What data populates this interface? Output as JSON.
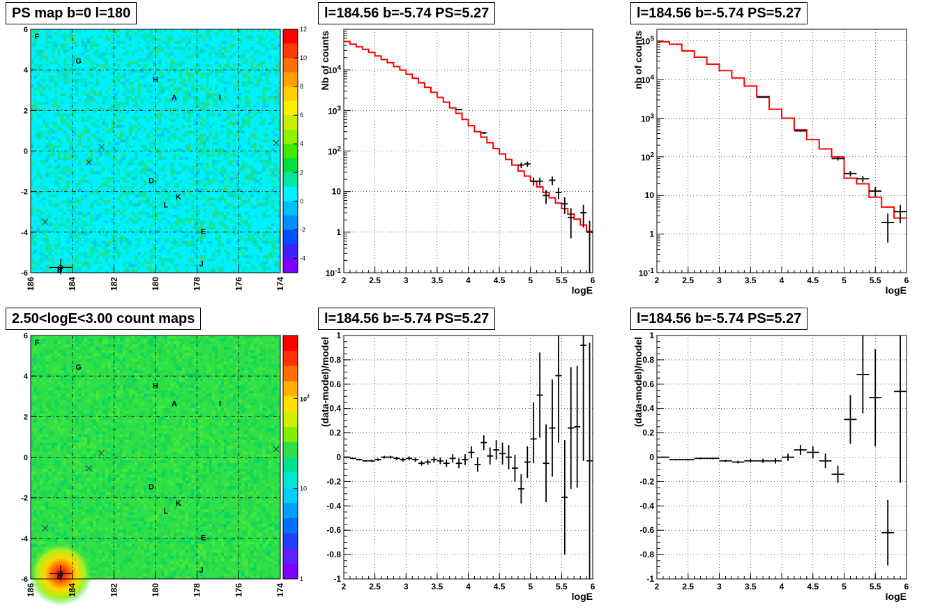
{
  "chart_data": [
    {
      "type": "heatmap",
      "title": "PS map b=0 l=180",
      "xlim": [
        186,
        174
      ],
      "ylim": [
        -6,
        6
      ],
      "x_ticks": [
        "186",
        "184",
        "182",
        "180",
        "178",
        "176",
        "174"
      ],
      "y_ticks": [
        "6",
        "4",
        "2",
        "0",
        "-2",
        "-4",
        "-6"
      ],
      "z_scale": "linear",
      "z_ticks": [
        "12",
        "10",
        "8",
        "6",
        "4",
        "2",
        "0",
        "-2",
        "-4"
      ],
      "zlim": [
        -5,
        12
      ],
      "grid": true,
      "colors": {
        "background": "#00f0ff",
        "field": "#20e8ee",
        "marker": "#000000"
      },
      "labels": [
        {
          "text": "F",
          "l": 185.7,
          "b": 5.65
        },
        {
          "text": "G",
          "l": 183.7,
          "b": 4.45
        },
        {
          "text": "H",
          "l": 180.0,
          "b": 3.55
        },
        {
          "text": "A",
          "l": 179.1,
          "b": 2.65
        },
        {
          "text": "I",
          "l": 176.9,
          "b": 2.65
        },
        {
          "text": "D",
          "l": 180.2,
          "b": -1.45
        },
        {
          "text": "K",
          "l": 178.9,
          "b": -2.25
        },
        {
          "text": "L",
          "l": 179.5,
          "b": -2.65
        },
        {
          "text": "E",
          "l": 177.7,
          "b": -3.95
        },
        {
          "text": "J",
          "l": 177.8,
          "b": -5.55
        },
        {
          "text": "B",
          "l": 184.6,
          "b": -5.85
        }
      ],
      "crosses": [
        {
          "l": 182.6,
          "b": 0.2
        },
        {
          "l": 183.2,
          "b": -0.55
        },
        {
          "l": 174.2,
          "b": 0.4
        },
        {
          "l": 185.3,
          "b": -3.5
        }
      ],
      "errorbar_marker": {
        "l": 184.56,
        "b": -5.74
      }
    },
    {
      "type": "line",
      "title": "l=184.56 b=-5.74 PS=5.27",
      "xlabel": "logE",
      "ylabel": "Nb of counts",
      "xlim": [
        2,
        6
      ],
      "ylim": [
        0.1,
        100000
      ],
      "yscale": "log",
      "x_ticks": [
        "2",
        "2.5",
        "3",
        "3.5",
        "4",
        "4.5",
        "5",
        "5.5",
        "6"
      ],
      "y_ticks": [
        "10^-1",
        "1",
        "10",
        "10^2",
        "10^3",
        "10^4"
      ],
      "grid": true,
      "bin_width": 0.1,
      "series": [
        {
          "name": "",
          "color": "#ff0000",
          "style": "step",
          "x": [
            2.0,
            2.1,
            2.2,
            2.3,
            2.4,
            2.5,
            2.6,
            2.7,
            2.8,
            2.9,
            3.0,
            3.1,
            3.2,
            3.3,
            3.4,
            3.5,
            3.6,
            3.7,
            3.8,
            3.9,
            4.0,
            4.1,
            4.2,
            4.3,
            4.4,
            4.5,
            4.6,
            4.7,
            4.8,
            4.9,
            5.0,
            5.1,
            5.2,
            5.3,
            5.4,
            5.5,
            5.6,
            5.7,
            5.8,
            5.9
          ],
          "values": [
            50000,
            43000,
            37000,
            32000,
            27000,
            22000,
            18000,
            15000,
            12000,
            9800,
            7800,
            6200,
            4800,
            3700,
            2800,
            2100,
            1600,
            1150,
            850,
            600,
            420,
            300,
            220,
            160,
            115,
            85,
            62,
            45,
            32,
            24,
            18,
            13,
            9.5,
            7,
            5.2,
            3.8,
            2.8,
            2.1,
            1.5,
            1.05
          ]
        },
        {
          "name": "",
          "color": "#000000",
          "style": "errorbar",
          "x": [
            3.85,
            4.25,
            4.85,
            4.95,
            5.05,
            5.15,
            5.25,
            5.35,
            5.45,
            5.55,
            5.65,
            5.85,
            5.95
          ],
          "values": [
            1050,
            280,
            45,
            48,
            18,
            18,
            8,
            19,
            9.5,
            5,
            2.3,
            3,
            1
          ],
          "err_low": [
            30,
            16,
            7,
            7,
            4,
            4,
            3,
            4.5,
            3,
            2.2,
            1.6,
            1.7,
            0.9
          ],
          "err_high": [
            30,
            16,
            7,
            7,
            4,
            4,
            3,
            4.5,
            3,
            2.2,
            1.6,
            1.7,
            0.9
          ]
        }
      ]
    },
    {
      "type": "line",
      "title": "l=184.56 b=-5.74 PS=5.27",
      "xlabel": "logE",
      "ylabel": "nb of counts",
      "xlim": [
        2,
        6
      ],
      "ylim": [
        0.1,
        200000
      ],
      "yscale": "log",
      "x_ticks": [
        "2",
        "2.5",
        "3",
        "3.5",
        "4",
        "4.5",
        "5",
        "5.5",
        "6"
      ],
      "y_ticks": [
        "10^-1",
        "1",
        "10",
        "10^2",
        "10^3",
        "10^4",
        "10^5"
      ],
      "grid": true,
      "bin_width": 0.2,
      "series": [
        {
          "name": "",
          "color": "#ff0000",
          "style": "step",
          "x": [
            2.0,
            2.2,
            2.4,
            2.6,
            2.8,
            3.0,
            3.2,
            3.4,
            3.6,
            3.8,
            4.0,
            4.2,
            4.4,
            4.6,
            4.8,
            5.0,
            5.2,
            5.4,
            5.6,
            5.8
          ],
          "values": [
            95000,
            82000,
            55000,
            38000,
            25000,
            17000,
            11000,
            6800,
            3600,
            1700,
            1000,
            500,
            280,
            160,
            100,
            28,
            20,
            9,
            5,
            2.6
          ]
        },
        {
          "name": "",
          "color": "#000000",
          "style": "errorbar",
          "x": [
            3.7,
            4.3,
            4.9,
            5.1,
            5.3,
            5.5,
            5.7,
            5.9
          ],
          "values": [
            3500,
            470,
            90,
            37,
            27,
            13,
            2,
            3.8
          ],
          "err_low": [
            60,
            22,
            10,
            6,
            5,
            3.6,
            1.4,
            1.9
          ],
          "err_high": [
            60,
            22,
            10,
            6,
            5,
            3.6,
            1.4,
            1.9
          ]
        }
      ]
    },
    {
      "type": "heatmap",
      "title": "2.50<logE<3.00 count maps",
      "xlim": [
        186,
        174
      ],
      "ylim": [
        -6,
        6
      ],
      "x_ticks": [
        "186",
        "184",
        "182",
        "180",
        "178",
        "176",
        "174"
      ],
      "y_ticks": [
        "6",
        "4",
        "2",
        "0",
        "-2",
        "-4",
        "-6"
      ],
      "z_scale": "log",
      "z_ticks": [
        "10^2",
        "10",
        "1"
      ],
      "zlim": [
        1,
        500
      ],
      "grid": true,
      "colors": {
        "background": "#2ee050",
        "field": "#30e048",
        "hotspot": "#ff0000",
        "marker": "#000000"
      },
      "hotspot": {
        "l": 184.56,
        "b": -5.74
      },
      "labels": [
        {
          "text": "F",
          "l": 185.7,
          "b": 5.65
        },
        {
          "text": "G",
          "l": 183.7,
          "b": 4.45
        },
        {
          "text": "H",
          "l": 180.0,
          "b": 3.55
        },
        {
          "text": "A",
          "l": 179.1,
          "b": 2.65
        },
        {
          "text": "I",
          "l": 176.9,
          "b": 2.65
        },
        {
          "text": "D",
          "l": 180.2,
          "b": -1.45
        },
        {
          "text": "K",
          "l": 178.9,
          "b": -2.25
        },
        {
          "text": "L",
          "l": 179.5,
          "b": -2.65
        },
        {
          "text": "E",
          "l": 177.7,
          "b": -3.95
        },
        {
          "text": "J",
          "l": 177.8,
          "b": -5.55
        },
        {
          "text": "B",
          "l": 184.6,
          "b": -5.85
        }
      ],
      "crosses": [
        {
          "l": 182.6,
          "b": 0.2
        },
        {
          "l": 183.2,
          "b": -0.55
        },
        {
          "l": 174.2,
          "b": 0.4
        },
        {
          "l": 185.3,
          "b": -3.5
        }
      ],
      "errorbar_marker": {
        "l": 184.56,
        "b": -5.74
      }
    },
    {
      "type": "scatter",
      "title": "l=184.56 b=-5.74 PS=5.27",
      "xlabel": "logE",
      "ylabel": "(data-model)/model",
      "xlim": [
        2,
        6
      ],
      "ylim": [
        -1,
        1
      ],
      "x_ticks": [
        "2",
        "2.5",
        "3",
        "3.5",
        "4",
        "4.5",
        "5",
        "5.5",
        "6"
      ],
      "y_ticks": [
        "1",
        "0.8",
        "0.6",
        "0.4",
        "0.2",
        "0",
        "-0.2",
        "-0.4",
        "-0.6",
        "-0.8",
        "-1"
      ],
      "grid": true,
      "bin_width": 0.1,
      "series": [
        {
          "name": "",
          "color": "#000000",
          "style": "errorbar",
          "x": [
            2.05,
            2.15,
            2.25,
            2.35,
            2.45,
            2.55,
            2.65,
            2.75,
            2.85,
            2.95,
            3.05,
            3.15,
            3.25,
            3.35,
            3.45,
            3.55,
            3.65,
            3.75,
            3.85,
            3.95,
            4.05,
            4.15,
            4.25,
            4.35,
            4.45,
            4.55,
            4.65,
            4.75,
            4.85,
            4.95,
            5.05,
            5.15,
            5.25,
            5.35,
            5.45,
            5.55,
            5.65,
            5.75,
            5.85,
            5.95
          ],
          "values": [
            0.0,
            -0.01,
            -0.02,
            -0.03,
            -0.03,
            -0.02,
            0.0,
            0.0,
            -0.01,
            -0.02,
            -0.01,
            -0.02,
            -0.05,
            -0.04,
            -0.02,
            -0.03,
            -0.05,
            -0.01,
            -0.05,
            -0.02,
            0.04,
            -0.06,
            0.12,
            0.01,
            0.06,
            0.03,
            0.0,
            -0.09,
            -0.26,
            -0.04,
            0.15,
            0.51,
            -0.05,
            0.24,
            0.67,
            -0.33,
            0.24,
            0.25,
            0.92,
            -0.03
          ],
          "err_low": [
            0.005,
            0.006,
            0.007,
            0.008,
            0.009,
            0.01,
            0.011,
            0.012,
            0.013,
            0.015,
            0.016,
            0.018,
            0.02,
            0.022,
            0.025,
            0.027,
            0.03,
            0.035,
            0.04,
            0.045,
            0.05,
            0.06,
            0.06,
            0.07,
            0.08,
            0.09,
            0.1,
            0.11,
            0.12,
            0.13,
            0.2,
            0.35,
            0.32,
            0.4,
            0.55,
            0.47,
            0.5,
            0.5,
            0.95,
            0.97
          ],
          "err_high": [
            0.005,
            0.006,
            0.007,
            0.008,
            0.009,
            0.01,
            0.011,
            0.012,
            0.013,
            0.015,
            0.016,
            0.018,
            0.02,
            0.022,
            0.025,
            0.027,
            0.03,
            0.035,
            0.04,
            0.045,
            0.05,
            0.06,
            0.06,
            0.07,
            0.08,
            0.09,
            0.1,
            0.11,
            0.12,
            0.13,
            0.3,
            0.35,
            0.32,
            0.4,
            0.55,
            0.47,
            0.5,
            0.5,
            0.95,
            0.97
          ]
        }
      ]
    },
    {
      "type": "scatter",
      "title": "l=184.56 b=-5.74 PS=5.27",
      "xlabel": "logE",
      "ylabel": "(data-model)/model",
      "xlim": [
        2,
        6
      ],
      "ylim": [
        -1,
        1
      ],
      "x_ticks": [
        "2",
        "2.5",
        "3",
        "3.5",
        "4",
        "4.5",
        "5",
        "5.5",
        "6"
      ],
      "y_ticks": [
        "1",
        "0.8",
        "0.6",
        "0.4",
        "0.2",
        "0",
        "-0.2",
        "-0.4",
        "-0.6",
        "-0.8",
        "-1"
      ],
      "grid": true,
      "bin_width": 0.2,
      "series": [
        {
          "name": "",
          "color": "#000000",
          "style": "errorbar",
          "x": [
            2.1,
            2.3,
            2.5,
            2.7,
            2.9,
            3.1,
            3.3,
            3.5,
            3.7,
            3.9,
            4.1,
            4.3,
            4.5,
            4.7,
            4.9,
            5.1,
            5.3,
            5.5,
            5.7,
            5.9
          ],
          "values": [
            0.0,
            -0.02,
            -0.02,
            -0.01,
            -0.01,
            -0.03,
            -0.04,
            -0.03,
            -0.03,
            -0.03,
            0.0,
            0.06,
            0.04,
            -0.03,
            -0.14,
            0.31,
            0.68,
            0.49,
            -0.62,
            0.54
          ],
          "err_low": [
            0.004,
            0.005,
            0.006,
            0.007,
            0.008,
            0.01,
            0.012,
            0.015,
            0.018,
            0.022,
            0.03,
            0.04,
            0.05,
            0.06,
            0.07,
            0.2,
            0.32,
            0.4,
            0.27,
            0.75
          ],
          "err_high": [
            0.004,
            0.005,
            0.006,
            0.007,
            0.008,
            0.01,
            0.012,
            0.015,
            0.018,
            0.022,
            0.03,
            0.04,
            0.05,
            0.06,
            0.07,
            0.2,
            0.32,
            0.4,
            0.27,
            0.75
          ]
        }
      ]
    }
  ]
}
